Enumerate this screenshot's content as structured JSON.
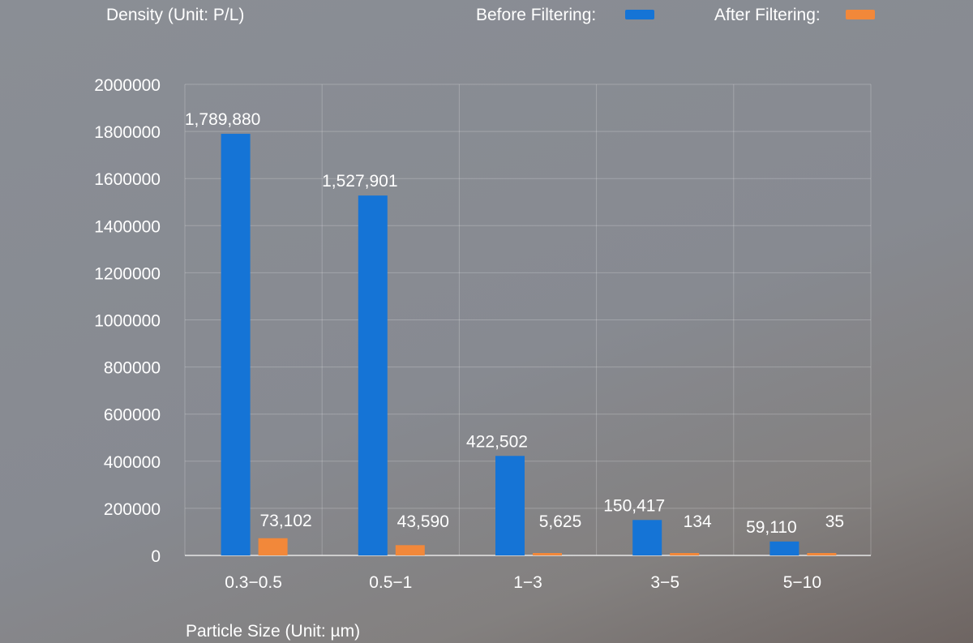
{
  "chart_data": {
    "type": "bar",
    "ylabel": "Density (Unit: P/L)",
    "xlabel": "Particle Size (Unit: µm)",
    "categories": [
      "0.3−0.5",
      "0.5−1",
      "1−3",
      "3−5",
      "5−10"
    ],
    "series": [
      {
        "name": "Before Filtering:",
        "color": "#1574d6",
        "values": [
          1789880,
          1527901,
          422502,
          150417,
          59110
        ],
        "labels": [
          "1,789,880",
          "1,527,901",
          "422,502",
          "150,417",
          "59,110"
        ]
      },
      {
        "name": "After Filtering:",
        "color": "#f2883a",
        "values": [
          73102,
          43590,
          5625,
          134,
          35
        ],
        "labels": [
          "73,102",
          "43,590",
          "5,625",
          "134",
          "35"
        ]
      }
    ],
    "ylim": [
      0,
      2000000
    ],
    "yticks": [
      "0",
      "200000",
      "400000",
      "600000",
      "800000",
      "1000000",
      "1200000",
      "1400000",
      "1600000",
      "1800000",
      "2000000"
    ],
    "grid": true,
    "legend": "top-right"
  }
}
